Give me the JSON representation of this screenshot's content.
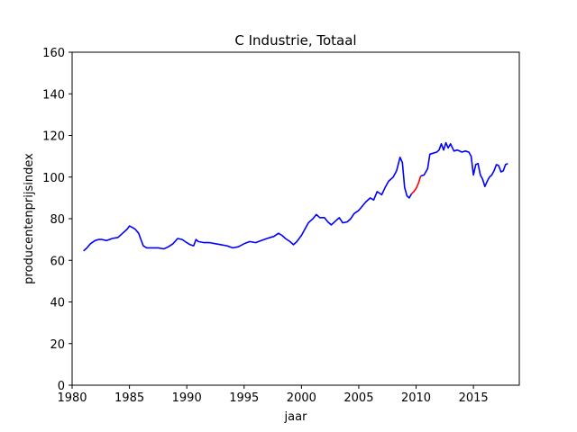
{
  "chart_data": {
    "type": "line",
    "title": "C Industrie, Totaal",
    "xlabel": "jaar",
    "ylabel": "producentenprijsindex",
    "xlim": [
      1980,
      2019
    ],
    "ylim": [
      0,
      160
    ],
    "xticks": [
      "1980",
      "1985",
      "1990",
      "1995",
      "2000",
      "2005",
      "2010",
      "2015"
    ],
    "yticks": [
      "0",
      "20",
      "40",
      "60",
      "80",
      "100",
      "120",
      "140",
      "160"
    ],
    "grid": false,
    "series": [
      {
        "color": "#0000ff",
        "x": [
          1981.0,
          1981.3,
          1981.6,
          1982.0,
          1982.3,
          1982.6,
          1983.0,
          1983.5,
          1984.0,
          1984.4,
          1984.8,
          1985.0,
          1985.2,
          1985.5,
          1985.8,
          1986.0,
          1986.2,
          1986.5,
          1987.0,
          1987.5,
          1988.0,
          1988.4,
          1988.8,
          1989.2,
          1989.6,
          1990.0,
          1990.3,
          1990.6,
          1990.8,
          1991.0,
          1991.5,
          1992.0,
          1992.5,
          1993.0,
          1993.5,
          1994.0,
          1994.5,
          1995.0,
          1995.5,
          1996.0,
          1996.5,
          1997.0,
          1997.3,
          1997.6,
          1998.0,
          1998.3,
          1998.6,
          1999.0,
          1999.3,
          1999.6,
          2000.0,
          2000.3,
          2000.6,
          2000.8,
          2001.0,
          2001.3,
          2001.6,
          2002.0,
          2002.3,
          2002.6,
          2003.0,
          2003.3,
          2003.6,
          2004.0,
          2004.3,
          2004.6,
          2005.0,
          2005.3,
          2005.6,
          2006.0,
          2006.3,
          2006.6,
          2007.0,
          2007.3,
          2007.6,
          2008.0,
          2008.3,
          2008.6,
          2008.8,
          2009.0,
          2009.2,
          2009.4,
          2009.6
        ],
        "y": [
          64.5,
          66,
          68,
          69.5,
          70,
          70,
          69.5,
          70.5,
          71,
          73,
          75,
          76.5,
          76,
          75,
          73,
          70,
          67,
          66,
          66,
          66,
          65.5,
          66.5,
          68,
          70.5,
          70,
          68.5,
          67.5,
          67,
          70,
          69,
          68.5,
          68.5,
          68,
          67.5,
          67,
          66,
          66.5,
          68,
          69,
          68.5,
          69.5,
          70.5,
          71,
          71.5,
          73,
          72,
          70.5,
          69,
          67.5,
          69,
          72,
          75,
          78,
          79,
          80,
          82,
          80.5,
          80.5,
          78.5,
          77,
          79,
          80.5,
          78,
          78.5,
          80,
          82.5,
          84,
          86,
          88,
          90,
          89,
          93,
          91.5,
          95,
          98,
          100,
          103,
          109.5,
          107,
          95,
          91,
          90,
          92
        ]
      },
      {
        "color": "#ff0000",
        "x": [
          2009.6,
          2009.8,
          2010.0,
          2010.2,
          2010.4
        ],
        "y": [
          92,
          93,
          94.5,
          97,
          100.5
        ]
      },
      {
        "color": "#0000ff",
        "x": [
          2010.4,
          2010.7,
          2011.0,
          2011.2,
          2011.5,
          2011.8,
          2012.0,
          2012.2,
          2012.4,
          2012.6,
          2012.8,
          2013.0,
          2013.3,
          2013.6,
          2014.0,
          2014.3,
          2014.6,
          2014.8,
          2015.0,
          2015.2,
          2015.4,
          2015.6,
          2015.8,
          2016.0,
          2016.2,
          2016.4,
          2016.6,
          2016.8,
          2017.0,
          2017.2,
          2017.4,
          2017.6,
          2017.8,
          2018.0
        ],
        "y": [
          100.5,
          101,
          104,
          111,
          111.5,
          112,
          113,
          116,
          113,
          116.5,
          114,
          116,
          112.5,
          113,
          112,
          112.5,
          112,
          110,
          101,
          106,
          106.5,
          101,
          99,
          95.5,
          98,
          100,
          101,
          103,
          106,
          105.5,
          102.5,
          103,
          106,
          106.5
        ]
      }
    ]
  }
}
